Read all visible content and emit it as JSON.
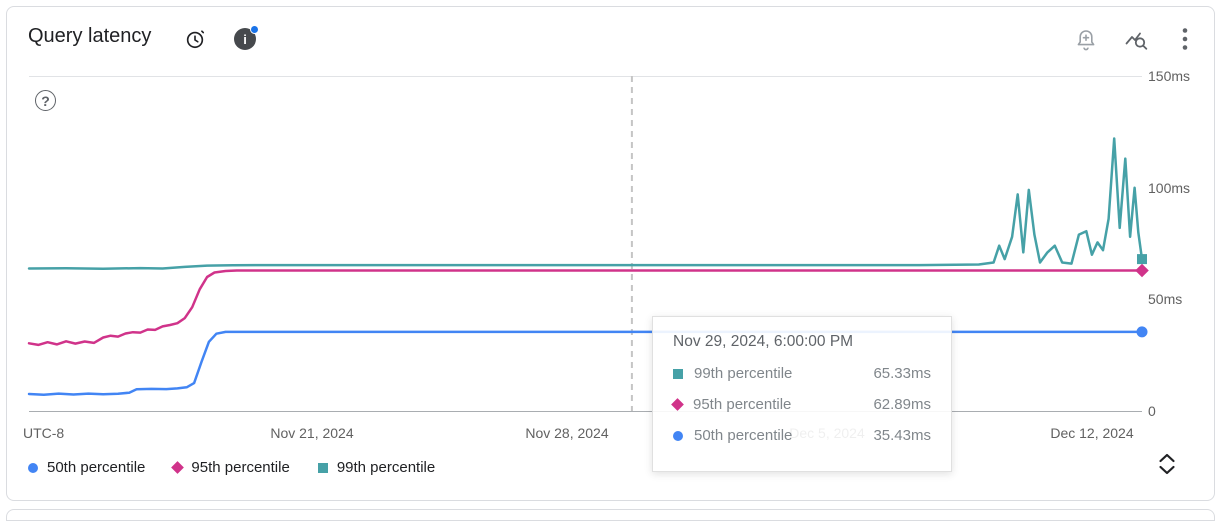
{
  "header": {
    "title": "Query latency"
  },
  "axes": {
    "utc_label": "UTC-8",
    "y_ticks": [
      "150ms",
      "100ms",
      "50ms",
      "0"
    ],
    "x_ticks": [
      "Nov 21, 2024",
      "Nov 28, 2024",
      "Dec 5, 2024",
      "Dec 12, 2024"
    ]
  },
  "help_glyph": "?",
  "tooltip": {
    "title": "Nov 29, 2024, 6:00:00 PM",
    "rows": [
      {
        "label": "99th percentile",
        "value": "65.33ms",
        "marker": "square",
        "color": "#46a1a7"
      },
      {
        "label": "95th percentile",
        "value": "62.89ms",
        "marker": "diamond",
        "color": "#d0338a"
      },
      {
        "label": "50th percentile",
        "value": "35.43ms",
        "marker": "circle",
        "color": "#4285f4"
      }
    ]
  },
  "legend": {
    "items": [
      {
        "label": "50th percentile",
        "marker": "circle",
        "color": "#4285f4"
      },
      {
        "label": "95th percentile",
        "marker": "diamond",
        "color": "#d0338a"
      },
      {
        "label": "99th percentile",
        "marker": "square",
        "color": "#46a1a7"
      }
    ]
  },
  "chart_data": {
    "type": "line",
    "title": "Query latency",
    "y_unit": "ms",
    "ylim": [
      0,
      150
    ],
    "y_ticks": [
      0,
      50,
      100,
      150
    ],
    "grid": false,
    "legend_position": "bottom",
    "x_axis": {
      "timezone": "UTC-8",
      "start_day": 0,
      "end_day": 30,
      "tick_days": [
        7.5,
        14.5,
        21.5,
        28.5
      ],
      "tick_labels": [
        "Nov 21, 2024",
        "Nov 28, 2024",
        "Dec 5, 2024",
        "Dec 12, 2024"
      ]
    },
    "crosshair": {
      "day": 16.25,
      "label": "Nov 29, 2024, 6:00:00 PM",
      "color": "#c5c5c5"
    },
    "series": [
      {
        "name": "50th percentile",
        "color": "#4285f4",
        "marker": "circle",
        "points": [
          [
            0,
            7.6
          ],
          [
            0.4,
            7.3
          ],
          [
            0.8,
            7.8
          ],
          [
            1.2,
            7.4
          ],
          [
            1.6,
            7.8
          ],
          [
            2.0,
            7.5
          ],
          [
            2.4,
            7.7
          ],
          [
            2.7,
            8.2
          ],
          [
            2.9,
            9.7
          ],
          [
            3.3,
            9.9
          ],
          [
            3.7,
            9.8
          ],
          [
            4.0,
            10.1
          ],
          [
            4.25,
            10.6
          ],
          [
            4.45,
            12.5
          ],
          [
            4.65,
            22
          ],
          [
            4.85,
            31
          ],
          [
            5.05,
            34.6
          ],
          [
            5.3,
            35.43
          ],
          [
            10,
            35.43
          ],
          [
            16.25,
            35.43
          ],
          [
            22,
            35.43
          ],
          [
            30,
            35.43
          ]
        ]
      },
      {
        "name": "95th percentile",
        "color": "#d0338a",
        "marker": "diamond",
        "points": [
          [
            0,
            30.3
          ],
          [
            0.25,
            29.6
          ],
          [
            0.5,
            30.8
          ],
          [
            0.75,
            29.8
          ],
          [
            1.0,
            31.2
          ],
          [
            1.25,
            30.2
          ],
          [
            1.5,
            31.1
          ],
          [
            1.75,
            30.5
          ],
          [
            2.0,
            32.9
          ],
          [
            2.2,
            33.7
          ],
          [
            2.4,
            33.3
          ],
          [
            2.6,
            34.7
          ],
          [
            2.8,
            35.3
          ],
          [
            3.0,
            35.1
          ],
          [
            3.2,
            36.5
          ],
          [
            3.4,
            36.3
          ],
          [
            3.6,
            37.9
          ],
          [
            3.8,
            38.5
          ],
          [
            4.0,
            39.3
          ],
          [
            4.2,
            41.6
          ],
          [
            4.4,
            46.5
          ],
          [
            4.6,
            54.5
          ],
          [
            4.8,
            60
          ],
          [
            5.0,
            62
          ],
          [
            5.3,
            62.7
          ],
          [
            5.6,
            62.89
          ],
          [
            10,
            62.89
          ],
          [
            16.25,
            62.89
          ],
          [
            22,
            62.89
          ],
          [
            30,
            62.89
          ]
        ]
      },
      {
        "name": "99th percentile",
        "color": "#46a1a7",
        "marker": "square",
        "points": [
          [
            0,
            63.8
          ],
          [
            1,
            63.9
          ],
          [
            2,
            63.7
          ],
          [
            3,
            64.0
          ],
          [
            3.6,
            63.8
          ],
          [
            4.2,
            64.5
          ],
          [
            4.8,
            65.1
          ],
          [
            5.5,
            65.3
          ],
          [
            8,
            65.33
          ],
          [
            12,
            65.33
          ],
          [
            16.25,
            65.33
          ],
          [
            20,
            65.33
          ],
          [
            24,
            65.33
          ],
          [
            25.6,
            65.6
          ],
          [
            26.0,
            66.5
          ],
          [
            26.15,
            74
          ],
          [
            26.3,
            68
          ],
          [
            26.5,
            78
          ],
          [
            26.65,
            97
          ],
          [
            26.8,
            71
          ],
          [
            26.95,
            99
          ],
          [
            27.1,
            79
          ],
          [
            27.25,
            66.5
          ],
          [
            27.45,
            71
          ],
          [
            27.65,
            74
          ],
          [
            27.85,
            66.5
          ],
          [
            28.1,
            66
          ],
          [
            28.3,
            79
          ],
          [
            28.5,
            80.5
          ],
          [
            28.65,
            70
          ],
          [
            28.8,
            75.5
          ],
          [
            28.95,
            72
          ],
          [
            29.1,
            86
          ],
          [
            29.25,
            122
          ],
          [
            29.4,
            82
          ],
          [
            29.55,
            113
          ],
          [
            29.68,
            78
          ],
          [
            29.8,
            100
          ],
          [
            29.9,
            80
          ],
          [
            30,
            68
          ]
        ]
      }
    ]
  }
}
